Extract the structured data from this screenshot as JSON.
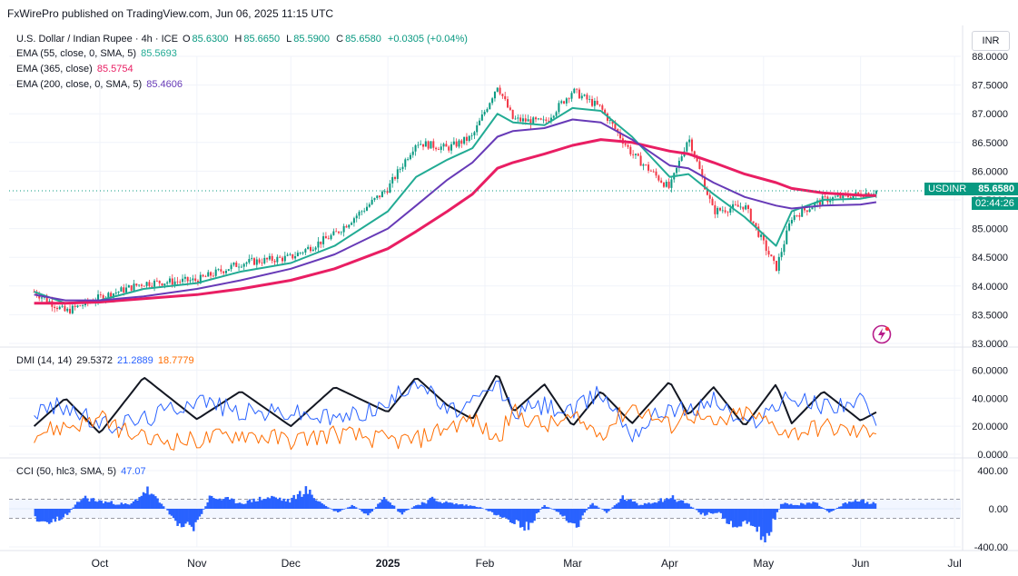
{
  "header": {
    "published": "FxWirePro published on TradingView.com, Jun 06, 2025 11:15 UTC",
    "currency": "INR"
  },
  "legend": {
    "symbol": "U.S. Dollar / Indian Rupee · 4h · ICE",
    "o_label": "O",
    "o": "85.6300",
    "h_label": "H",
    "h": "85.6650",
    "l_label": "L",
    "l": "85.5900",
    "c_label": "C",
    "c": "85.6580",
    "change": "+0.0305 (+0.04%)",
    "ema55_label": "EMA (55, close, 0, SMA, 5)",
    "ema55": "85.5693",
    "ema365_label": "EMA (365, close)",
    "ema365": "85.5754",
    "ema200_label": "EMA (200, close, 0, SMA, 5)",
    "ema200": "85.4606",
    "dmi_label": "DMI (14, 14)",
    "dmi_adx": "29.5372",
    "dmi_plus": "21.2889",
    "dmi_minus": "18.7779",
    "cci_label": "CCI (50, hlc3, SMA, 5)",
    "cci": "47.07"
  },
  "price_tag": {
    "symbol": "USDINR",
    "price": "85.6580",
    "countdown": "02:44:26"
  },
  "colors": {
    "up": "#089981",
    "down": "#f23645",
    "ema55": "#22ab94",
    "ema365": "#e91e63",
    "ema200": "#673ab7",
    "adx": "#131722",
    "dip": "#2962ff",
    "dim": "#ff6d00",
    "cci": "#2962ff",
    "tag": "#089981"
  },
  "chart_data": [
    {
      "type": "line",
      "title": "U.S. Dollar / Indian Rupee · 4h · ICE",
      "x_ticks": [
        "Oct",
        "Nov",
        "Dec",
        "2025",
        "Feb",
        "Mar",
        "Apr",
        "May",
        "Jun",
        "Jul"
      ],
      "y_ticks": [
        "88.0000",
        "87.5000",
        "87.0000",
        "86.5000",
        "86.0000",
        "85.5000",
        "85.0000",
        "84.5000",
        "84.0000",
        "83.5000",
        "83.0000"
      ],
      "ylim": [
        83.0,
        88.0
      ],
      "x_dates": [
        "2024-09-10",
        "2024-09-20",
        "2024-10-01",
        "2024-10-15",
        "2024-11-01",
        "2024-11-15",
        "2024-12-01",
        "2024-12-15",
        "2025-01-01",
        "2025-01-10",
        "2025-01-20",
        "2025-01-28",
        "2025-02-05",
        "2025-02-10",
        "2025-02-20",
        "2025-03-01",
        "2025-03-10",
        "2025-03-20",
        "2025-04-01",
        "2025-04-07",
        "2025-04-15",
        "2025-04-25",
        "2025-05-05",
        "2025-05-10",
        "2025-05-20",
        "2025-06-01",
        "2025-06-06"
      ],
      "series": [
        {
          "name": "USDINR",
          "values": [
            83.9,
            83.55,
            83.8,
            84.05,
            84.1,
            84.4,
            84.5,
            84.9,
            85.7,
            86.5,
            86.4,
            86.6,
            87.5,
            86.9,
            86.85,
            87.4,
            87.1,
            86.3,
            85.7,
            86.6,
            85.3,
            85.4,
            84.3,
            85.2,
            85.5,
            85.6,
            85.658
          ]
        },
        {
          "name": "EMA (55, close, 0, SMA, 5)",
          "values": [
            83.9,
            83.7,
            83.75,
            83.95,
            84.05,
            84.25,
            84.4,
            84.7,
            85.3,
            85.9,
            86.2,
            86.4,
            87.0,
            86.85,
            86.8,
            87.1,
            87.05,
            86.6,
            85.9,
            85.95,
            85.6,
            85.2,
            84.7,
            85.3,
            85.5,
            85.52,
            85.569
          ]
        },
        {
          "name": "EMA (365, close)",
          "values": [
            83.7,
            83.7,
            83.72,
            83.78,
            83.85,
            83.95,
            84.1,
            84.3,
            84.65,
            84.95,
            85.3,
            85.6,
            86.05,
            86.15,
            86.3,
            86.45,
            86.55,
            86.5,
            86.35,
            86.3,
            86.15,
            85.95,
            85.8,
            85.7,
            85.62,
            85.58,
            85.575
          ]
        },
        {
          "name": "EMA (200, close, 0, SMA, 5)",
          "values": [
            83.85,
            83.75,
            83.75,
            83.82,
            83.95,
            84.1,
            84.3,
            84.55,
            85.0,
            85.4,
            85.85,
            86.15,
            86.6,
            86.7,
            86.75,
            86.9,
            86.85,
            86.55,
            86.1,
            86.05,
            85.8,
            85.55,
            85.4,
            85.35,
            85.4,
            85.42,
            85.461
          ]
        }
      ]
    },
    {
      "type": "line",
      "title": "DMI (14, 14)",
      "y_ticks": [
        "60.0000",
        "40.0000",
        "20.0000",
        "0.0000"
      ],
      "ylim": [
        0,
        70
      ],
      "series": [
        {
          "name": "ADX",
          "values": [
            20,
            40,
            15,
            55,
            25,
            45,
            20,
            48,
            30,
            55,
            35,
            25,
            58,
            30,
            50,
            20,
            45,
            22,
            52,
            28,
            48,
            20,
            50,
            22,
            45,
            24,
            30
          ]
        },
        {
          "name": "+DI",
          "values": [
            30,
            35,
            20,
            25,
            40,
            30,
            30,
            25,
            35,
            55,
            30,
            35,
            50,
            30,
            35,
            30,
            45,
            15,
            35,
            30,
            40,
            20,
            35,
            40,
            35,
            38,
            21
          ]
        },
        {
          "name": "-DI",
          "values": [
            15,
            20,
            25,
            10,
            10,
            15,
            10,
            15,
            10,
            10,
            20,
            25,
            10,
            30,
            20,
            25,
            15,
            35,
            20,
            30,
            20,
            30,
            20,
            15,
            20,
            15,
            19
          ]
        }
      ]
    },
    {
      "type": "bar",
      "title": "CCI (50, hlc3, SMA, 5)",
      "y_ticks": [
        "400.00",
        "0.00",
        "-400.00"
      ],
      "ylim": [
        -400,
        400
      ],
      "values": [
        -100,
        -150,
        -60,
        120,
        80,
        60,
        40,
        200,
        40,
        -150,
        -200,
        120,
        100,
        60,
        100,
        120,
        80,
        200,
        60,
        -40,
        40,
        -80,
        150,
        -60,
        40,
        100,
        60,
        40,
        20,
        -60,
        -120,
        -200,
        40,
        -40,
        -200,
        60,
        -40,
        120,
        40,
        80,
        120,
        60,
        -60,
        -40,
        -200,
        -160,
        -300,
        60,
        40,
        80,
        -40,
        60,
        90,
        47
      ]
    }
  ]
}
